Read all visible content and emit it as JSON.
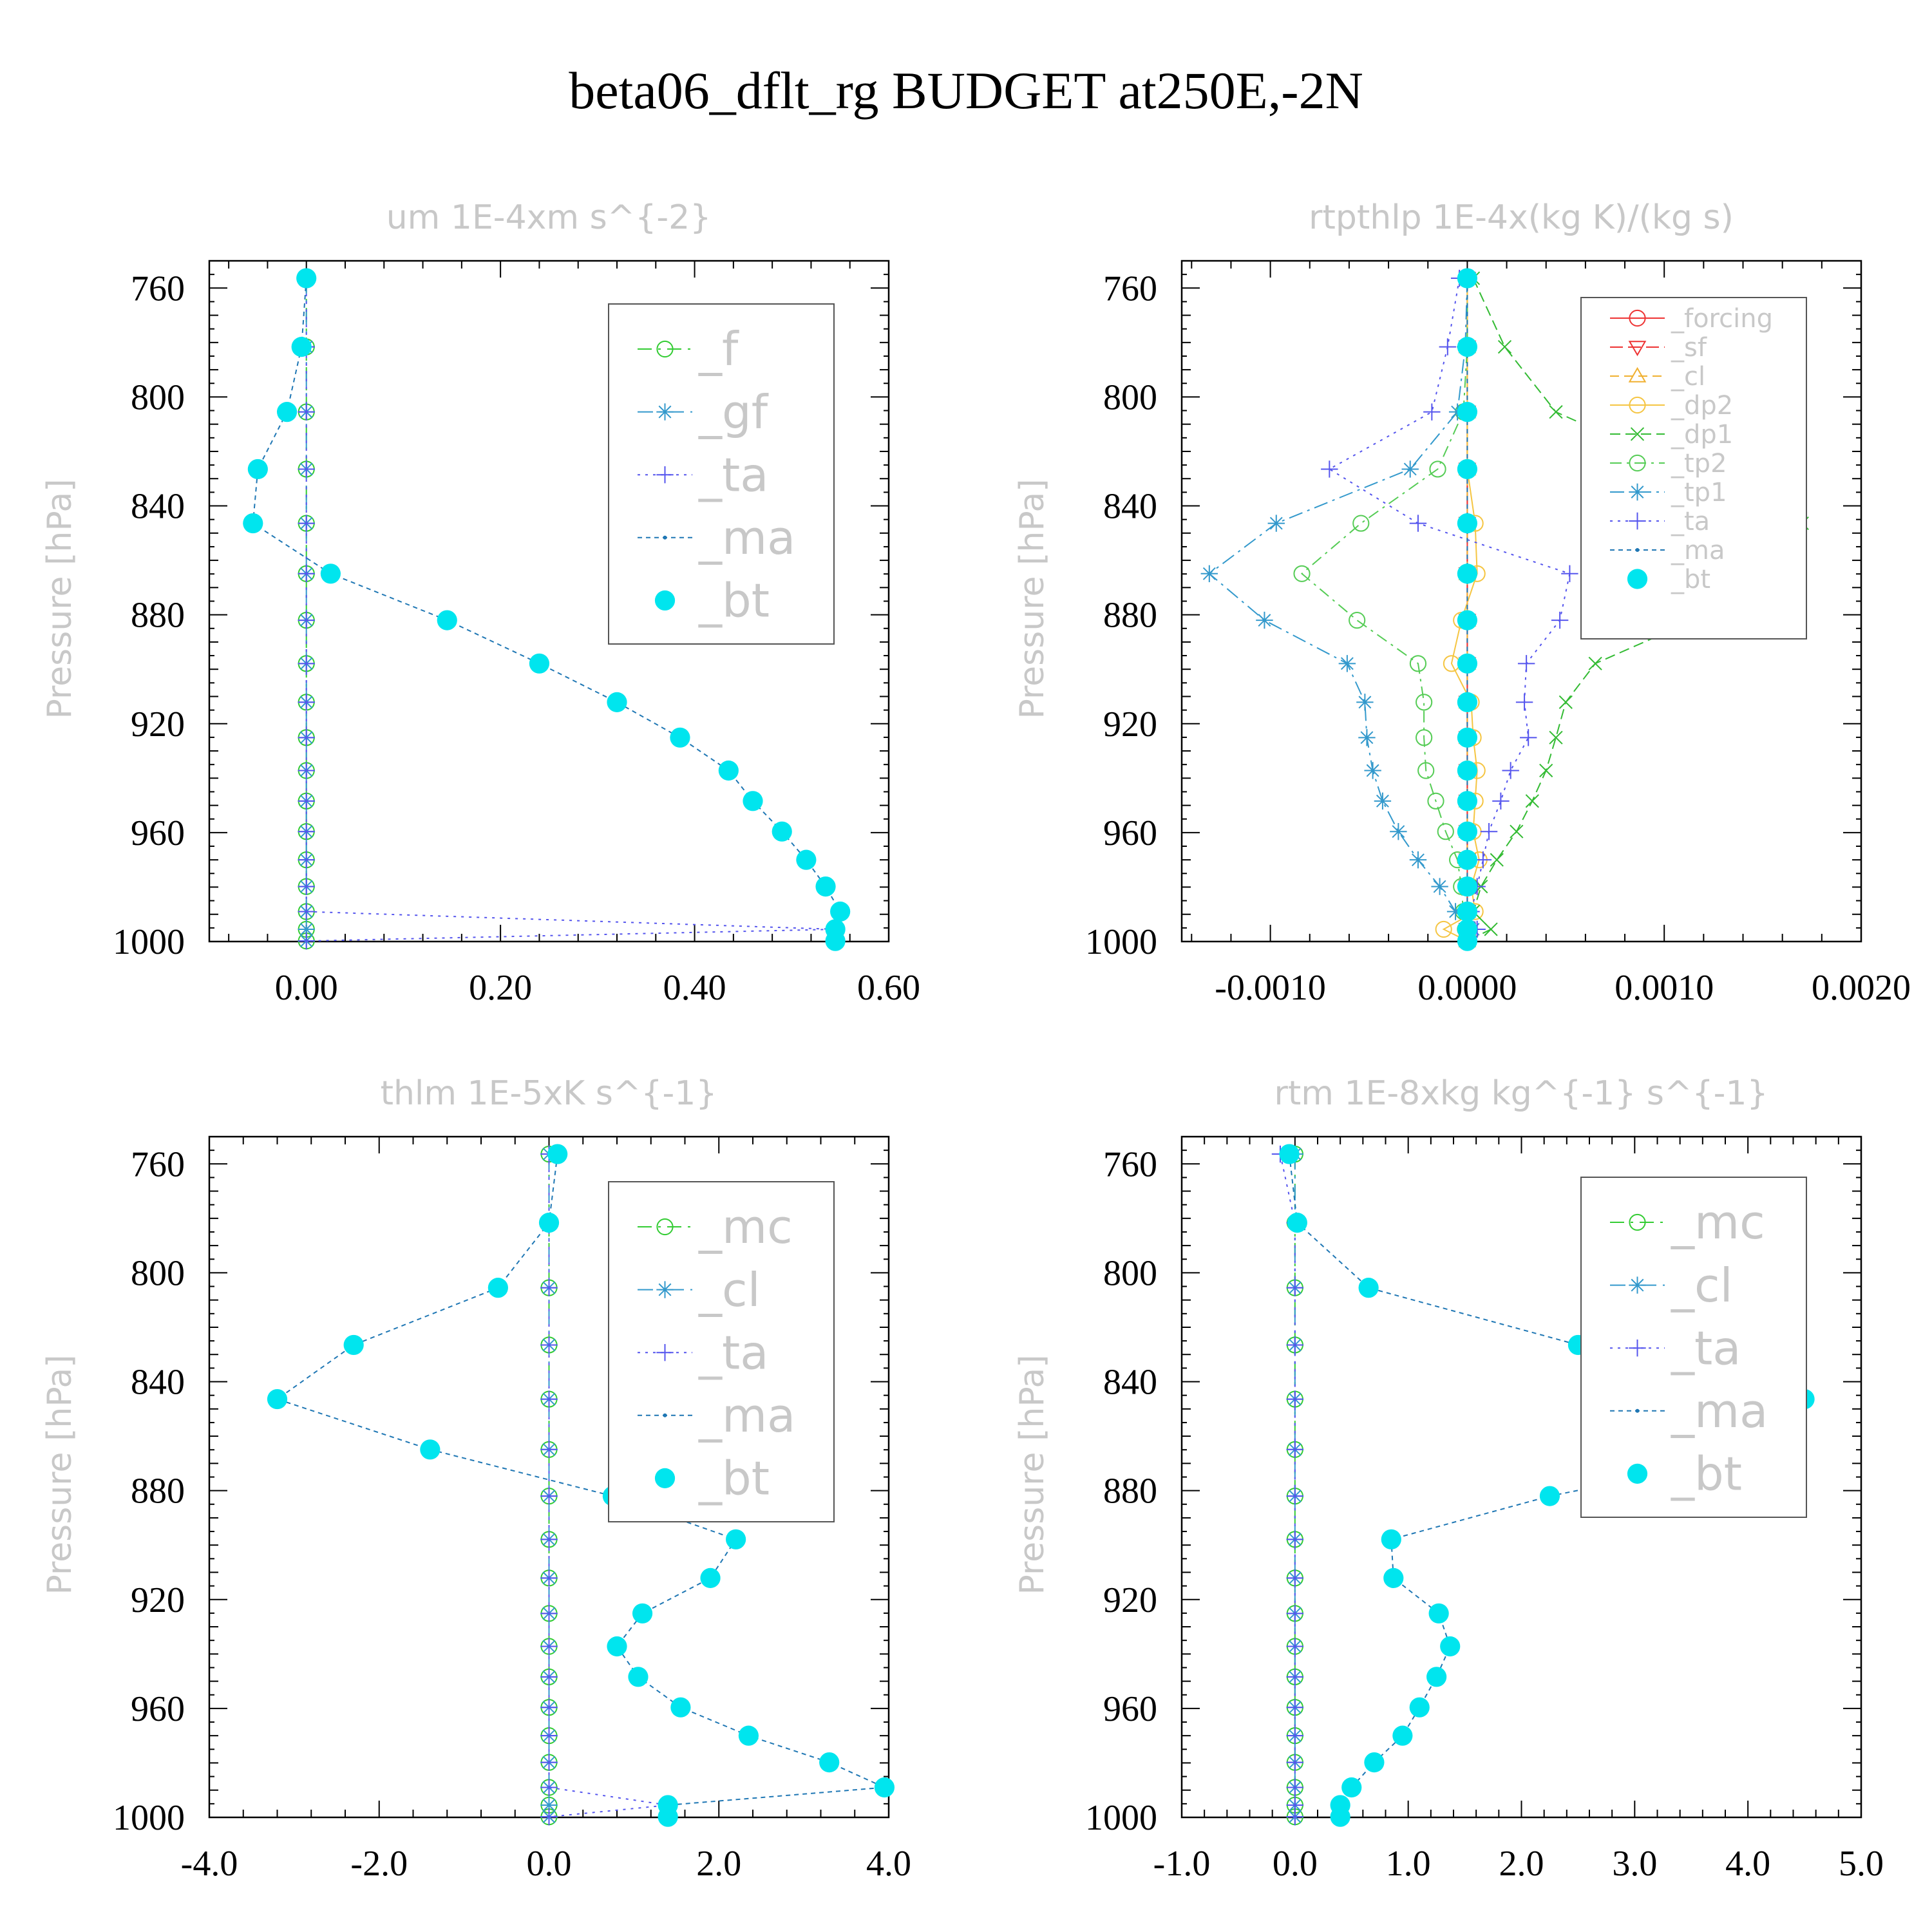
{
  "title": "beta06_dflt_rg  BUDGET at250E,-2N",
  "chart_data": [
    {
      "type": "line",
      "title": "um   1E-4xm s^{-2}",
      "ylabel": "Pressure [hPa]",
      "yticks": [
        760,
        800,
        840,
        880,
        920,
        960,
        1000
      ],
      "xticks": [
        "0.00",
        "0.20",
        "0.40",
        "0.60"
      ],
      "xlim": [
        -0.1,
        0.6
      ],
      "ylim": [
        750,
        1000
      ],
      "legend_position": "top-right",
      "levels": [
        756.4,
        781.6,
        805.5,
        826.5,
        846.4,
        864.9,
        882.0,
        897.9,
        912.1,
        925.1,
        937.2,
        948.4,
        959.6,
        970.0,
        979.8,
        989.0,
        995.5,
        999.8
      ],
      "series": [
        {
          "name": "_f",
          "color": "#33cc33",
          "dash": "22,10,4,10",
          "marker": "circle-open",
          "values": [
            0,
            0,
            0,
            0,
            0,
            0,
            0,
            0,
            0,
            0,
            0,
            0,
            0,
            0,
            0,
            0,
            0,
            0
          ]
        },
        {
          "name": "_gf",
          "color": "#3399cc",
          "dash": "24,10,4,10",
          "marker": "star",
          "values": [
            0,
            0,
            0,
            0,
            0,
            0,
            0,
            0,
            0,
            0,
            0,
            0,
            0,
            0,
            0,
            0,
            0,
            0
          ]
        },
        {
          "name": "_ta",
          "color": "#5555ee",
          "dash": "4,8",
          "marker": "plus",
          "values": [
            0,
            0,
            0,
            0,
            0,
            0,
            0,
            0,
            0,
            0,
            0,
            0,
            0,
            0,
            0,
            0,
            0.545,
            0.0
          ]
        },
        {
          "name": "_ma",
          "color": "#1f77b4",
          "dash": "7,6",
          "marker": "dot",
          "values": [
            0,
            -0.005,
            -0.02,
            -0.05,
            -0.055,
            0.025,
            0.145,
            0.24,
            0.32,
            0.385,
            0.435,
            0.46,
            0.49,
            0.515,
            0.535,
            0.55,
            0.545,
            0.545
          ]
        },
        {
          "name": "_bt",
          "color": "#00e5ee",
          "dash": "0",
          "marker": "filled",
          "values": [
            0,
            -0.005,
            -0.02,
            -0.05,
            -0.055,
            0.025,
            0.145,
            0.24,
            0.32,
            0.385,
            0.435,
            0.46,
            0.49,
            0.515,
            0.535,
            0.55,
            0.545,
            0.545
          ]
        }
      ]
    },
    {
      "type": "line",
      "title": "rtpthlp   1E-4x(kg K)/(kg s)",
      "ylabel": "Pressure [hPa]",
      "yticks": [
        760,
        800,
        840,
        880,
        920,
        960,
        1000
      ],
      "xticks": [
        "-0.0010",
        "0.0000",
        "0.0010",
        "0.0020"
      ],
      "xlim": [
        -0.00145,
        0.002
      ],
      "ylim": [
        750,
        1000
      ],
      "legend_position": "top-right",
      "levels": [
        756.4,
        781.6,
        805.5,
        826.5,
        846.4,
        864.9,
        882.0,
        897.9,
        912.1,
        925.1,
        937.2,
        948.4,
        959.6,
        970.0,
        979.8,
        989.0,
        995.5,
        999.8
      ],
      "series": [
        {
          "name": "_forcing",
          "color": "#ee3333",
          "dash": "0",
          "marker": "circle-open",
          "values": [
            0,
            0,
            0,
            0,
            0,
            0,
            0,
            0,
            0,
            0,
            0,
            0,
            0,
            0,
            0,
            0,
            0,
            0
          ]
        },
        {
          "name": "_sf",
          "color": "#ee3333",
          "dash": "20,8",
          "marker": "tri-down",
          "values": [
            0,
            0,
            0,
            0,
            0,
            0,
            0,
            0,
            0,
            0,
            0,
            0,
            0,
            0,
            0,
            0,
            0,
            0
          ]
        },
        {
          "name": "_cl",
          "color": "#f0b030",
          "dash": "14,8",
          "marker": "tri-up",
          "values": [
            0,
            0,
            0,
            0,
            0,
            0,
            0,
            0,
            0,
            0,
            0,
            0,
            0,
            0,
            0,
            0,
            0,
            0
          ]
        },
        {
          "name": "_dp2",
          "color": "#f5c542",
          "dash": "0",
          "marker": "circle-open",
          "values": [
            0,
            0,
            0,
            0,
            4e-05,
            5e-05,
            -3e-05,
            -8e-05,
            2e-05,
            3e-05,
            5e-05,
            4e-05,
            3e-05,
            6e-05,
            2e-05,
            4e-05,
            -0.00012,
            0.0
          ]
        },
        {
          "name": "_dp1",
          "color": "#33bb33",
          "dash": "16,8",
          "marker": "x",
          "values": [
            3e-05,
            0.00019,
            0.00045,
            0.0011,
            0.0017,
            0.00155,
            0.00115,
            0.00065,
            0.0005,
            0.00045,
            0.0004,
            0.00033,
            0.00025,
            0.00015,
            7e-05,
            3e-05,
            0.00012,
            0.0
          ]
        },
        {
          "name": "_tp2",
          "color": "#55cc55",
          "dash": "18,8,4,8",
          "marker": "circle-open",
          "values": [
            0,
            0,
            -2e-05,
            -0.00015,
            -0.00054,
            -0.00084,
            -0.00056,
            -0.00025,
            -0.00022,
            -0.00022,
            -0.00021,
            -0.00016,
            -0.00011,
            -5e-05,
            -3e-05,
            -2e-05,
            -1e-05,
            0.0
          ]
        },
        {
          "name": "_tp1",
          "color": "#3399cc",
          "dash": "22,8,4,8",
          "marker": "star",
          "values": [
            0,
            -1e-05,
            -5e-05,
            -0.00029,
            -0.00097,
            -0.00131,
            -0.00103,
            -0.00061,
            -0.00052,
            -0.00051,
            -0.00048,
            -0.00043,
            -0.00035,
            -0.00025,
            -0.00014,
            -6e-05,
            3e-05,
            0.0
          ]
        },
        {
          "name": "_ta",
          "color": "#5555ee",
          "dash": "4,8",
          "marker": "plus",
          "values": [
            -4e-05,
            -0.0001,
            -0.00018,
            -0.0007,
            -0.00025,
            0.00052,
            0.00047,
            0.0003,
            0.00029,
            0.00031,
            0.00022,
            0.00017,
            0.00011,
            8e-05,
            5e-05,
            2e-05,
            5e-05,
            0.0
          ]
        },
        {
          "name": "_ma",
          "color": "#1f77b4",
          "dash": "7,6",
          "marker": "dot",
          "values": [
            0,
            0,
            0,
            0,
            0,
            0,
            0,
            0,
            0,
            0,
            0,
            0,
            0,
            0,
            0,
            0,
            0,
            0
          ]
        },
        {
          "name": "_bt",
          "color": "#00e5ee",
          "dash": "0",
          "marker": "filled",
          "values": [
            0,
            0,
            0,
            0,
            0,
            0,
            0,
            0,
            0,
            0,
            0,
            0,
            0,
            0,
            0,
            0,
            0,
            0
          ]
        }
      ]
    },
    {
      "type": "line",
      "title": "thlm   1E-5xK s^{-1}",
      "ylabel": "Pressure [hPa]",
      "yticks": [
        760,
        800,
        840,
        880,
        920,
        960,
        1000
      ],
      "xticks": [
        "-4.0",
        "-2.0",
        "0.0",
        "2.0",
        "4.0"
      ],
      "xlim": [
        -4,
        4
      ],
      "ylim": [
        750,
        1000
      ],
      "legend_position": "top-right",
      "levels": [
        756.4,
        781.6,
        805.5,
        826.5,
        846.4,
        864.9,
        882.0,
        897.9,
        912.1,
        925.1,
        937.2,
        948.4,
        959.6,
        970.0,
        979.8,
        989.0,
        995.5,
        999.8
      ],
      "series": [
        {
          "name": "_mc",
          "color": "#33cc33",
          "dash": "22,10,4,10",
          "marker": "circle-open",
          "values": [
            0,
            0,
            0,
            0,
            0,
            0,
            0,
            0,
            0,
            0,
            0,
            0,
            0,
            0,
            0,
            0,
            0,
            0
          ]
        },
        {
          "name": "_cl",
          "color": "#3399cc",
          "dash": "24,10,4,10",
          "marker": "star",
          "values": [
            0,
            0,
            0,
            0,
            0,
            0,
            0,
            0,
            0,
            0,
            0,
            0,
            0,
            0,
            0,
            0,
            0,
            0
          ]
        },
        {
          "name": "_ta",
          "color": "#5555ee",
          "dash": "4,8",
          "marker": "plus",
          "values": [
            0,
            0,
            0,
            0,
            0,
            0,
            0,
            0,
            0,
            0,
            0,
            0,
            0,
            0,
            0,
            0,
            1.4,
            0.0
          ]
        },
        {
          "name": "_ma",
          "color": "#1f77b4",
          "dash": "7,6",
          "marker": "dot",
          "values": [
            0.1,
            0.0,
            -0.6,
            -2.3,
            -3.2,
            -1.4,
            0.75,
            2.2,
            1.9,
            1.1,
            0.8,
            1.05,
            1.55,
            2.35,
            3.3,
            3.95,
            1.4,
            1.4
          ]
        },
        {
          "name": "_bt",
          "color": "#00e5ee",
          "dash": "0",
          "marker": "filled",
          "values": [
            0.1,
            0.0,
            -0.6,
            -2.3,
            -3.2,
            -1.4,
            0.75,
            2.2,
            1.9,
            1.1,
            0.8,
            1.05,
            1.55,
            2.35,
            3.3,
            3.95,
            1.4,
            1.4
          ]
        }
      ]
    },
    {
      "type": "line",
      "title": "rtm   1E-8xkg kg^{-1} s^{-1}",
      "ylabel": "Pressure [hPa]",
      "yticks": [
        760,
        800,
        840,
        880,
        920,
        960,
        1000
      ],
      "xticks": [
        "-1.0",
        "0.0",
        "1.0",
        "2.0",
        "3.0",
        "4.0",
        "5.0"
      ],
      "xlim": [
        -1,
        5
      ],
      "ylim": [
        750,
        1000
      ],
      "legend_position": "top-right",
      "levels": [
        756.4,
        781.6,
        805.5,
        826.5,
        846.4,
        864.9,
        882.0,
        897.9,
        912.1,
        925.1,
        937.2,
        948.4,
        959.6,
        970.0,
        979.8,
        989.0,
        995.5,
        999.8
      ],
      "series": [
        {
          "name": "_mc",
          "color": "#33cc33",
          "dash": "22,10,4,10",
          "marker": "circle-open",
          "values": [
            0,
            0,
            0,
            0,
            0,
            0,
            0,
            0,
            0,
            0,
            0,
            0,
            0,
            0,
            0,
            0,
            0,
            0
          ]
        },
        {
          "name": "_cl",
          "color": "#3399cc",
          "dash": "24,10,4,10",
          "marker": "star",
          "values": [
            0,
            0,
            0,
            0,
            0,
            0,
            0,
            0,
            0,
            0,
            0,
            0,
            0,
            0,
            0,
            0,
            0,
            0
          ]
        },
        {
          "name": "_ta",
          "color": "#5555ee",
          "dash": "4,8",
          "marker": "plus",
          "values": [
            -0.13,
            0,
            0,
            0,
            0,
            0,
            0,
            0,
            0,
            0,
            0,
            0,
            0,
            0,
            0,
            0,
            0,
            0
          ]
        },
        {
          "name": "_ma",
          "color": "#1f77b4",
          "dash": "7,6",
          "marker": "dot",
          "values": [
            -0.05,
            0.02,
            0.65,
            2.5,
            4.5,
            4.3,
            2.25,
            0.85,
            0.87,
            1.27,
            1.37,
            1.25,
            1.1,
            0.95,
            0.7,
            0.5,
            0.4,
            0.4
          ]
        },
        {
          "name": "_bt",
          "color": "#00e5ee",
          "dash": "0",
          "marker": "filled",
          "values": [
            -0.05,
            0.02,
            0.65,
            2.5,
            4.5,
            4.3,
            2.25,
            0.85,
            0.87,
            1.27,
            1.37,
            1.25,
            1.1,
            0.95,
            0.7,
            0.5,
            0.4,
            0.4
          ]
        }
      ]
    }
  ]
}
